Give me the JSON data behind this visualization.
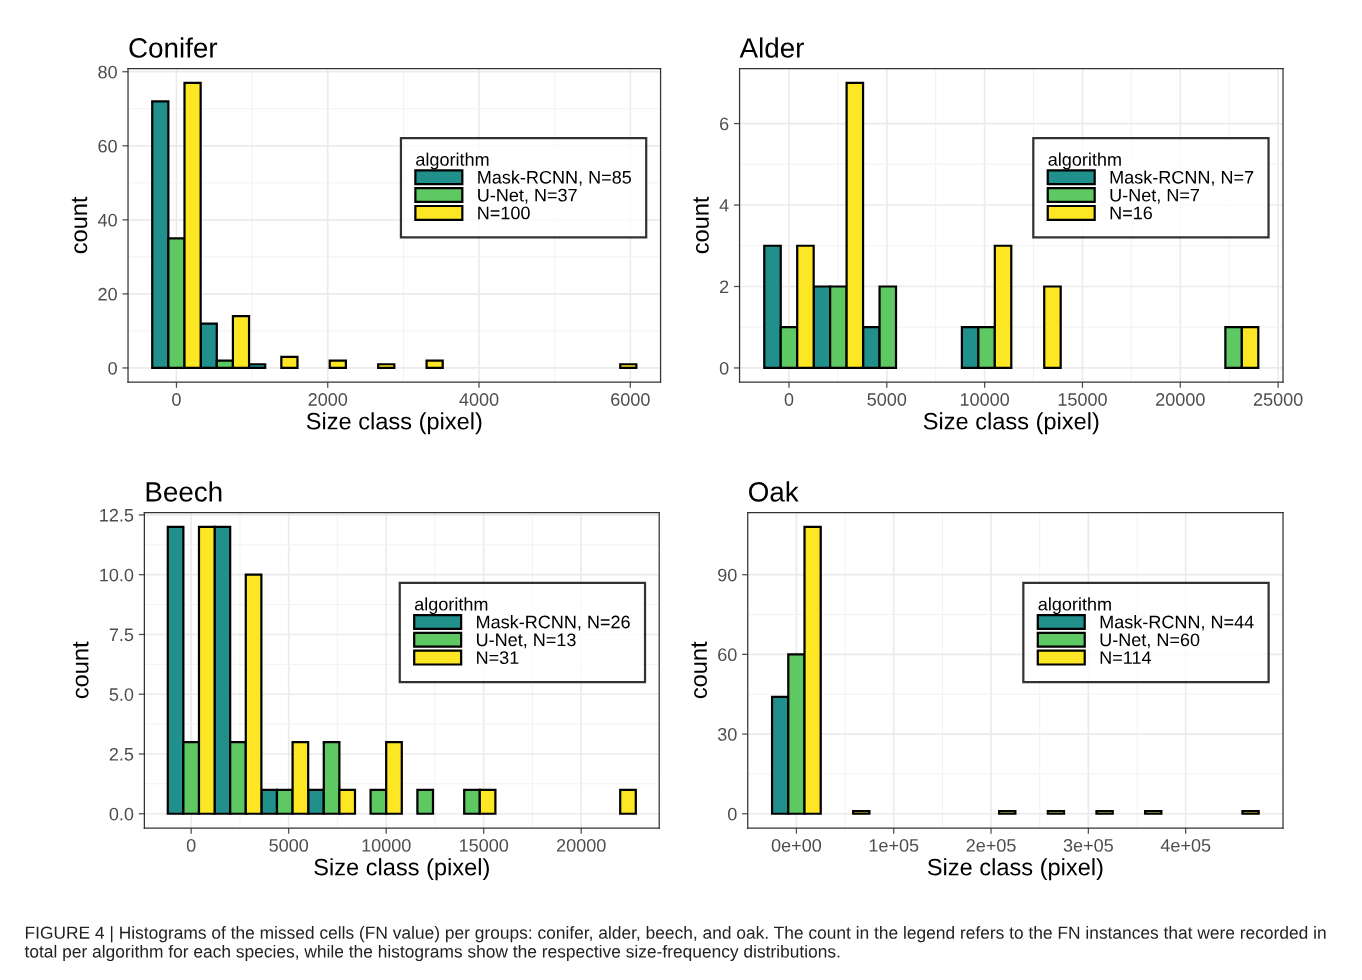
{
  "chart_data": [
    {
      "type": "histogram",
      "title": "Conifer",
      "xlabel": "Size class (pixel)",
      "ylabel": "count",
      "legend_title": "algorithm",
      "legend": "right",
      "grid": true,
      "bins": [
        -320,
        320,
        960,
        1600,
        2240,
        2880,
        3520,
        4160,
        4800,
        5440,
        6080
      ],
      "xlim": [
        -640,
        6400
      ],
      "xticks": [
        0,
        2000,
        4000,
        6000
      ],
      "ylim": [
        -3.85,
        80.85
      ],
      "yticks": [
        0,
        20,
        40,
        60,
        80
      ],
      "series": [
        {
          "name": "Mask-RCNN, N=85",
          "color": "#21908c",
          "values": [
            72,
            12,
            1,
            0,
            0,
            0,
            0,
            0,
            0,
            0
          ]
        },
        {
          "name": "U-Net, N=37",
          "color": "#5ec962",
          "values": [
            35,
            2,
            0,
            0,
            0,
            0,
            0,
            0,
            0,
            0
          ]
        },
        {
          "name": "N=100",
          "color": "#fde725",
          "values": [
            77,
            14,
            3,
            2,
            1,
            2,
            0,
            0,
            0,
            1
          ]
        }
      ],
      "annotations": [
        "FIGURE 4 | Histograms of the missed cells (FN value) per groups: conifer, alder, beech, and oak. The count in the legend refers to the FN instances that were recorded in total per algorithm for each species, while the histograms show the respective size-frequency distributions."
      ]
    },
    {
      "type": "histogram",
      "title": "Alder",
      "xlabel": "Size class (pixel)",
      "ylabel": "count",
      "legend_title": "algorithm",
      "legend": "right",
      "grid": true,
      "bins": [
        -1262.5,
        1262.5,
        3787.5,
        6312.5,
        8837.5,
        11362.5,
        13887.5,
        16412.5,
        18937.5,
        21462.5,
        23987.5
      ],
      "xlim": [
        -2525,
        25250
      ],
      "xticks": [
        0,
        5000,
        10000,
        15000,
        20000,
        25000
      ],
      "ylim": [
        -0.35,
        7.35
      ],
      "yticks": [
        0,
        2,
        4,
        6
      ],
      "series": [
        {
          "name": "Mask-RCNN, N=7",
          "color": "#21908c",
          "values": [
            3,
            2,
            1,
            0,
            1,
            0,
            0,
            0,
            0,
            0
          ]
        },
        {
          "name": "U-Net, N=7",
          "color": "#5ec962",
          "values": [
            1,
            2,
            2,
            0,
            1,
            0,
            0,
            0,
            0,
            1
          ]
        },
        {
          "name": "N=16",
          "color": "#fde725",
          "values": [
            3,
            7,
            0,
            0,
            3,
            2,
            0,
            0,
            0,
            1
          ]
        }
      ]
    },
    {
      "type": "histogram",
      "title": "Beech",
      "xlabel": "Size class (pixel)",
      "ylabel": "count",
      "legend_title": "algorithm",
      "legend": "right",
      "grid": true,
      "bins": [
        -1200,
        1200,
        3600,
        6000,
        8400,
        10800,
        13200,
        15600,
        18000,
        20400,
        22800
      ],
      "xlim": [
        -2400,
        24000
      ],
      "xticks": [
        0,
        5000,
        10000,
        15000,
        20000
      ],
      "ylim": [
        -0.6,
        12.6
      ],
      "yticks": [
        {
          "value": 0,
          "label": "0.0"
        },
        2.5,
        {
          "value": 5,
          "label": "5.0"
        },
        7.5,
        {
          "value": 10,
          "label": "10.0"
        },
        12.5
      ],
      "series": [
        {
          "name": "Mask-RCNN, N=26",
          "color": "#21908c",
          "values": [
            12,
            12,
            1,
            1,
            0,
            0,
            0,
            0,
            0,
            0
          ]
        },
        {
          "name": "U-Net, N=13",
          "color": "#5ec962",
          "values": [
            3,
            3,
            1,
            3,
            1,
            1,
            1,
            0,
            0,
            0
          ]
        },
        {
          "name": "N=31",
          "color": "#fde725",
          "values": [
            12,
            10,
            3,
            1,
            3,
            0,
            1,
            0,
            0,
            1
          ]
        }
      ]
    },
    {
      "type": "histogram",
      "title": "Oak",
      "xlabel": "Size class (pixel)",
      "ylabel": "count",
      "legend_title": "algorithm",
      "legend": "right",
      "grid": true,
      "bins": [
        -25000,
        25000,
        75000,
        125000,
        175000,
        225000,
        275000,
        325000,
        375000,
        425000,
        475000
      ],
      "xlim": [
        -50000,
        500000
      ],
      "xticks": [
        {
          "value": 0,
          "label": "0e+00"
        },
        {
          "value": 100000,
          "label": "1e+05"
        },
        {
          "value": 200000,
          "label": "2e+05"
        },
        {
          "value": 300000,
          "label": "3e+05"
        },
        {
          "value": 400000,
          "label": "4e+05"
        }
      ],
      "ylim": [
        -5.4,
        113.4
      ],
      "yticks": [
        0,
        30,
        60,
        90
      ],
      "series": [
        {
          "name": "Mask-RCNN, N=44",
          "color": "#21908c",
          "values": [
            44,
            0,
            0,
            0,
            0,
            0,
            0,
            0,
            0,
            0
          ]
        },
        {
          "name": "U-Net, N=60",
          "color": "#5ec962",
          "values": [
            60,
            0,
            0,
            0,
            0,
            0,
            0,
            0,
            0,
            0
          ]
        },
        {
          "name": "N=114",
          "color": "#fde725",
          "values": [
            108,
            1,
            0,
            0,
            1,
            1,
            1,
            1,
            0,
            1
          ]
        }
      ]
    }
  ]
}
